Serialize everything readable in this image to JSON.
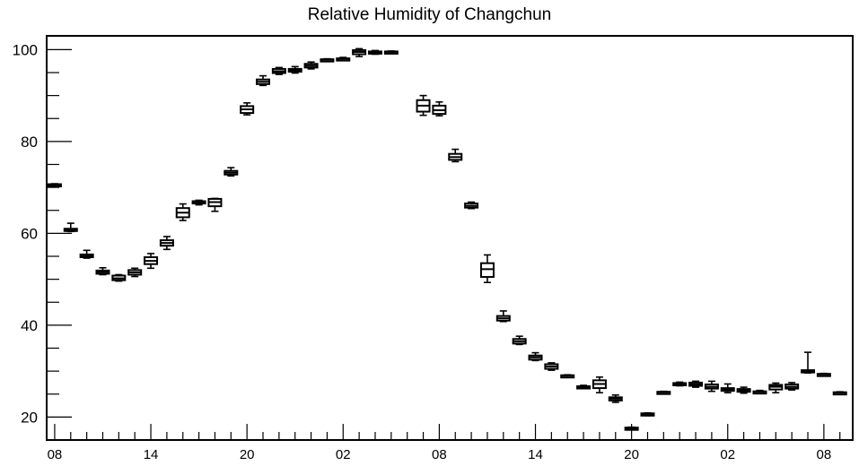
{
  "chart_data": {
    "type": "box",
    "title": "Relative Humidity of Changchun",
    "xlabel": "",
    "ylabel": "",
    "ylim": [
      15,
      103
    ],
    "yticks": [
      20,
      40,
      60,
      80,
      100
    ],
    "x_tick_labels": [
      "08",
      "14",
      "20",
      "02",
      "08",
      "14",
      "20",
      "02",
      "08"
    ],
    "x_tick_positions_hours": [
      0,
      6,
      12,
      18,
      24,
      30,
      36,
      42,
      48
    ],
    "grid": false,
    "legend": "none",
    "colors": {
      "box": "#000000",
      "background": "#ffffff"
    },
    "boxes": [
      {
        "x": 0,
        "min": 70.2,
        "q1": 70.3,
        "median": 70.5,
        "q3": 70.7,
        "max": 70.8
      },
      {
        "x": 1,
        "min": 60.4,
        "q1": 60.5,
        "median": 60.8,
        "q3": 61.0,
        "max": 62.2
      },
      {
        "x": 2,
        "min": 54.6,
        "q1": 54.8,
        "median": 55.0,
        "q3": 55.4,
        "max": 56.3
      },
      {
        "x": 3,
        "min": 51.0,
        "q1": 51.2,
        "median": 51.6,
        "q3": 51.9,
        "max": 52.5
      },
      {
        "x": 4,
        "min": 49.6,
        "q1": 49.8,
        "median": 50.2,
        "q3": 50.8,
        "max": 51.0
      },
      {
        "x": 5,
        "min": 50.6,
        "q1": 51.0,
        "median": 51.5,
        "q3": 52.0,
        "max": 52.4
      },
      {
        "x": 6,
        "min": 52.4,
        "q1": 53.3,
        "median": 54.0,
        "q3": 54.8,
        "max": 55.6
      },
      {
        "x": 7,
        "min": 56.5,
        "q1": 57.3,
        "median": 57.9,
        "q3": 58.5,
        "max": 59.3
      },
      {
        "x": 8,
        "min": 62.8,
        "q1": 63.5,
        "median": 64.5,
        "q3": 65.5,
        "max": 66.4
      },
      {
        "x": 9,
        "min": 66.2,
        "q1": 66.5,
        "median": 66.8,
        "q3": 67.0,
        "max": 67.2
      },
      {
        "x": 10,
        "min": 64.8,
        "q1": 65.9,
        "median": 66.8,
        "q3": 67.5,
        "max": 67.6
      },
      {
        "x": 11,
        "min": 72.5,
        "q1": 72.8,
        "median": 73.2,
        "q3": 73.6,
        "max": 74.3
      },
      {
        "x": 12,
        "min": 85.8,
        "q1": 86.2,
        "median": 87.0,
        "q3": 87.7,
        "max": 88.4
      },
      {
        "x": 13,
        "min": 92.2,
        "q1": 92.5,
        "median": 93.0,
        "q3": 93.5,
        "max": 94.3
      },
      {
        "x": 14,
        "min": 94.6,
        "q1": 94.9,
        "median": 95.3,
        "q3": 95.8,
        "max": 96.1
      },
      {
        "x": 15,
        "min": 94.9,
        "q1": 95.2,
        "median": 95.5,
        "q3": 95.8,
        "max": 96.3
      },
      {
        "x": 16,
        "min": 95.8,
        "q1": 96.1,
        "median": 96.5,
        "q3": 96.9,
        "max": 97.3
      },
      {
        "x": 17,
        "min": 97.6,
        "q1": 97.7,
        "median": 97.8,
        "q3": 97.9,
        "max": 98.0
      },
      {
        "x": 18,
        "min": 97.7,
        "q1": 97.8,
        "median": 98.0,
        "q3": 98.1,
        "max": 98.3
      },
      {
        "x": 19,
        "min": 98.5,
        "q1": 99.0,
        "median": 99.5,
        "q3": 99.9,
        "max": 100.2
      },
      {
        "x": 20,
        "min": 99.0,
        "q1": 99.2,
        "median": 99.4,
        "q3": 99.6,
        "max": 99.8
      },
      {
        "x": 21,
        "min": 99.3,
        "q1": 99.4,
        "median": 99.5,
        "q3": 99.6,
        "max": 99.7
      },
      {
        "x": 23,
        "min": 85.7,
        "q1": 86.5,
        "median": 87.8,
        "q3": 89.0,
        "max": 90.0
      },
      {
        "x": 24,
        "min": 85.6,
        "q1": 86.0,
        "median": 86.8,
        "q3": 87.8,
        "max": 88.6
      },
      {
        "x": 25,
        "min": 75.6,
        "q1": 76.0,
        "median": 76.6,
        "q3": 77.3,
        "max": 78.3
      },
      {
        "x": 26,
        "min": 65.4,
        "q1": 65.6,
        "median": 66.0,
        "q3": 66.5,
        "max": 66.8
      },
      {
        "x": 27,
        "min": 49.3,
        "q1": 50.5,
        "median": 52.2,
        "q3": 53.5,
        "max": 55.3
      },
      {
        "x": 28,
        "min": 40.8,
        "q1": 41.0,
        "median": 41.5,
        "q3": 42.0,
        "max": 43.1
      },
      {
        "x": 29,
        "min": 35.8,
        "q1": 36.0,
        "median": 36.5,
        "q3": 37.0,
        "max": 37.6
      },
      {
        "x": 30,
        "min": 32.3,
        "q1": 32.5,
        "median": 33.0,
        "q3": 33.4,
        "max": 34.0
      },
      {
        "x": 31,
        "min": 30.2,
        "q1": 30.5,
        "median": 31.0,
        "q3": 31.5,
        "max": 31.8
      },
      {
        "x": 32,
        "min": 28.8,
        "q1": 28.9,
        "median": 29.0,
        "q3": 29.1,
        "max": 29.2
      },
      {
        "x": 33,
        "min": 26.2,
        "q1": 26.3,
        "median": 26.5,
        "q3": 26.7,
        "max": 26.9
      },
      {
        "x": 34,
        "min": 25.3,
        "q1": 26.3,
        "median": 27.2,
        "q3": 28.0,
        "max": 28.7
      },
      {
        "x": 35,
        "min": 23.2,
        "q1": 23.6,
        "median": 24.0,
        "q3": 24.3,
        "max": 24.8
      },
      {
        "x": 36,
        "min": 17.2,
        "q1": 17.3,
        "median": 17.5,
        "q3": 17.7,
        "max": 17.8
      },
      {
        "x": 37,
        "min": 20.3,
        "q1": 20.4,
        "median": 20.6,
        "q3": 20.8,
        "max": 20.9
      },
      {
        "x": 38,
        "min": 25.2,
        "q1": 25.3,
        "median": 25.4,
        "q3": 25.5,
        "max": 25.6
      },
      {
        "x": 39,
        "min": 26.8,
        "q1": 27.0,
        "median": 27.2,
        "q3": 27.4,
        "max": 27.6
      },
      {
        "x": 40,
        "min": 26.5,
        "q1": 26.8,
        "median": 27.1,
        "q3": 27.5,
        "max": 27.8
      },
      {
        "x": 41,
        "min": 25.6,
        "q1": 26.2,
        "median": 26.6,
        "q3": 27.1,
        "max": 27.8
      },
      {
        "x": 42,
        "min": 25.3,
        "q1": 25.7,
        "median": 26.0,
        "q3": 26.3,
        "max": 27.2
      },
      {
        "x": 43,
        "min": 25.2,
        "q1": 25.5,
        "median": 25.8,
        "q3": 26.1,
        "max": 26.5
      },
      {
        "x": 44,
        "min": 25.3,
        "q1": 25.4,
        "median": 25.5,
        "q3": 25.6,
        "max": 25.8
      },
      {
        "x": 45,
        "min": 25.3,
        "q1": 26.0,
        "median": 26.6,
        "q3": 27.0,
        "max": 27.4
      },
      {
        "x": 46,
        "min": 25.9,
        "q1": 26.2,
        "median": 26.6,
        "q3": 27.1,
        "max": 27.5
      },
      {
        "x": 47,
        "min": 29.6,
        "q1": 29.8,
        "median": 30.0,
        "q3": 30.2,
        "max": 34.1
      },
      {
        "x": 48,
        "min": 29.1,
        "q1": 29.2,
        "median": 29.3,
        "q3": 29.4,
        "max": 29.5
      },
      {
        "x": 49,
        "min": 25.1,
        "q1": 25.2,
        "median": 25.3,
        "q3": 25.4,
        "max": 25.5
      }
    ]
  }
}
